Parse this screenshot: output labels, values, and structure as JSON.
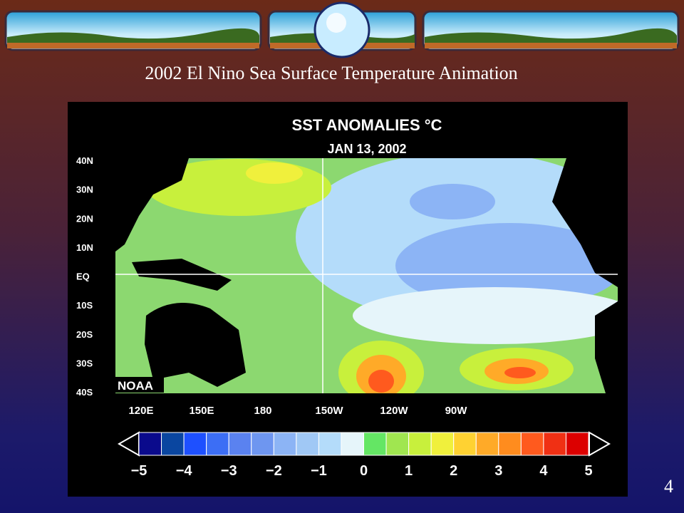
{
  "slide": {
    "title": "2002 El Nino Sea Surface Temperature Animation",
    "page_number": "4"
  },
  "map": {
    "title": "SST ANOMALIES °C",
    "date": "JAN 13, 2002",
    "credit": "NOAA",
    "lat_labels": [
      "40N",
      "30N",
      "20N",
      "10N",
      "EQ",
      "10S",
      "20S",
      "30S",
      "40S"
    ],
    "lon_labels": [
      "120E",
      "150E",
      "180",
      "150W",
      "120W",
      "90W"
    ],
    "colorbar": {
      "labels": [
        "−5",
        "−4",
        "−3",
        "−2",
        "−1",
        "0",
        "1",
        "2",
        "3",
        "4",
        "5"
      ],
      "colors": [
        "#0a0a8c",
        "#0a46a0",
        "#1e50ff",
        "#3c6ef5",
        "#5a82f0",
        "#6e96f0",
        "#8cb4f5",
        "#a0c8f5",
        "#b4dcfa",
        "#e6f5fa",
        "#64e664",
        "#a0e650",
        "#c8f03c",
        "#f0f03c",
        "#ffd232",
        "#ffaa28",
        "#ff8c1e",
        "#ff5a1e",
        "#f03014",
        "#dc0000"
      ]
    }
  }
}
